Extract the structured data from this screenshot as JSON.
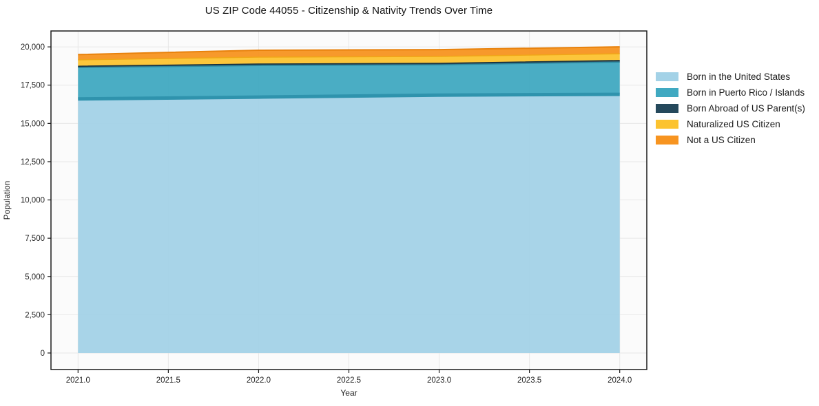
{
  "title": "US ZIP Code 44055 - Citizenship & Nativity Trends Over Time",
  "chart_data": {
    "type": "area",
    "stacked": true,
    "title": "US ZIP Code 44055 - Citizenship & Nativity Trends Over Time",
    "xlabel": "Year",
    "ylabel": "Population",
    "x": [
      2021,
      2022,
      2023,
      2024
    ],
    "series": [
      {
        "name": "Born in the United States",
        "color": "#a3d2e7",
        "edge_color": "#2f93ad",
        "edge_width": 5,
        "values": [
          16600,
          16720,
          16850,
          16900
        ]
      },
      {
        "name": "Born in Puerto Rico / Islands",
        "color": "#40a9c1",
        "edge_color": "#2c8aa0",
        "edge_width": 1.5,
        "values": [
          2050,
          2065,
          1980,
          2110
        ]
      },
      {
        "name": "Born Abroad of US Parent(s)",
        "color": "#25495c",
        "edge_color": "#16313f",
        "edge_width": 1.5,
        "values": [
          90,
          95,
          95,
          100
        ]
      },
      {
        "name": "Naturalized US Citizen",
        "color": "#fcc330",
        "edge_color": "#f0a617",
        "edge_width": 1.5,
        "values": [
          410,
          450,
          450,
          440
        ]
      },
      {
        "name": "Not a US Citizen",
        "color": "#f79420",
        "edge_color": "#e8820d",
        "edge_width": 2,
        "values": [
          350,
          450,
          445,
          450
        ]
      }
    ],
    "x_ticks": [
      2021.0,
      2021.5,
      2022.0,
      2022.5,
      2023.0,
      2023.5,
      2024.0
    ],
    "y_ticks": [
      0,
      2500,
      5000,
      7500,
      10000,
      12500,
      15000,
      17500,
      20000
    ],
    "x_range": [
      2020.85,
      2024.15
    ],
    "y_range": [
      -1080,
      21040
    ],
    "grid": true,
    "legend_position": "right",
    "colors": {
      "frame": "#1a1a1a",
      "grid": "#e7e7e7",
      "plot_bg": "#fbfbfb",
      "tick_text": "#1f1f1f",
      "axis_title_text": "#1f1f1f"
    }
  }
}
